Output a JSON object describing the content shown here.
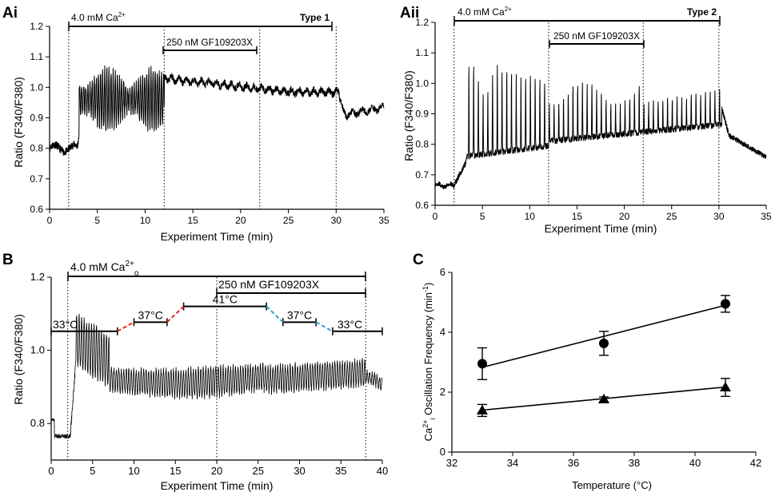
{
  "chart_data": [
    {
      "panel_label": "Ai",
      "type": "line",
      "title": "",
      "xlabel": "Experiment  Time (min)",
      "ylabel": "Ratio (F340/F380)",
      "xlim": [
        0,
        35
      ],
      "ylim": [
        0.6,
        1.2
      ],
      "xticks": [
        0,
        5,
        10,
        15,
        20,
        25,
        30,
        35
      ],
      "xtick_labels": [
        "0",
        "5",
        "10",
        "15",
        "20",
        "25",
        "30",
        "35"
      ],
      "yticks": [
        0.6,
        0.7,
        0.8,
        0.9,
        1.0,
        1.1,
        1.2
      ],
      "ytick_labels": [
        "0.6",
        "0.7",
        "0.8",
        "0.9",
        "1.0",
        "1.1",
        "1.2"
      ],
      "annotations": {
        "bar1": {
          "label_main": "4.0 mM Ca",
          "label_sup": "2+",
          "x": [
            2,
            30
          ]
        },
        "bar2": {
          "label": "250 nM GF109203X",
          "x": [
            12,
            22
          ]
        },
        "type_label": "Type 1",
        "vlines": [
          2,
          12,
          22,
          30
        ]
      },
      "trace": {
        "pre": 0.8,
        "osc_start": 2.9,
        "osc_base": 0.875,
        "osc_peak": 1.06,
        "drug_level": 1.03,
        "drug_end_level": 0.985,
        "post": 0.91,
        "osc_period": 0.22
      }
    },
    {
      "panel_label": "Aii",
      "type": "line",
      "title": "",
      "xlabel": "Experiment  Time (min)",
      "ylabel": "Ratio (F340/F380)",
      "xlim": [
        0,
        35
      ],
      "ylim": [
        0.6,
        1.2
      ],
      "xticks": [
        0,
        5,
        10,
        15,
        20,
        25,
        30,
        35
      ],
      "xtick_labels": [
        "0",
        "5",
        "10",
        "15",
        "20",
        "25",
        "30",
        "35"
      ],
      "yticks": [
        0.6,
        0.7,
        0.8,
        0.9,
        1.0,
        1.1,
        1.2
      ],
      "ytick_labels": [
        "0.6",
        "0.7",
        "0.8",
        "0.9",
        "1.0",
        "1.1",
        "1.2"
      ],
      "annotations": {
        "bar1": {
          "label_main": "4.0 mM Ca",
          "label_sup": "2+",
          "x": [
            2,
            30
          ]
        },
        "bar2": {
          "label": "250 nM GF109203X",
          "x": [
            12,
            22
          ]
        },
        "type_label": "Type 2",
        "vlines": [
          2,
          12,
          22,
          30
        ]
      },
      "trace": {
        "pre": 0.665,
        "base": 0.77,
        "spike_peak": 1.07,
        "spike_period": 0.5,
        "post": 0.76
      }
    },
    {
      "panel_label": "B",
      "type": "line",
      "title": "",
      "xlabel": "Experiment Time (min)",
      "ylabel": "Ratio (F340/F380)",
      "xlim": [
        0,
        40
      ],
      "ylim": [
        0.7,
        1.2
      ],
      "xticks": [
        0,
        5,
        10,
        15,
        20,
        25,
        30,
        35,
        40
      ],
      "xtick_labels": [
        "0",
        "5",
        "10",
        "15",
        "20",
        "25",
        "30",
        "35",
        "40"
      ],
      "yticks": [
        0.8,
        1.0,
        1.2
      ],
      "ytick_labels": [
        "0.8",
        "1.0",
        "1.2"
      ],
      "annotations": {
        "bar1": {
          "label_main": "4.0 mM Ca",
          "label_sup": "2+",
          "label_sub": "o",
          "x": [
            2,
            38
          ]
        },
        "bar2": {
          "label": "250 nM GF109203X",
          "x": [
            20,
            38
          ]
        },
        "temperature_segments": [
          {
            "label": "33°C",
            "x": [
              0,
              8
            ],
            "y": 1.052
          },
          {
            "label": "37°C",
            "x": [
              10,
              14
            ],
            "y": 1.077
          },
          {
            "label": "41°C",
            "x": [
              16,
              26
            ],
            "y": 1.12
          },
          {
            "label": "37°C",
            "x": [
              28,
              32
            ],
            "y": 1.077
          },
          {
            "label": "33°C",
            "x": [
              34,
              40
            ],
            "y": 1.052
          }
        ],
        "ramps": [
          {
            "x": [
              8,
              16
            ],
            "color": "#e8231e",
            "direction": "heating"
          },
          {
            "x": [
              26,
              34
            ],
            "color": "#2aa6c9",
            "direction": "cooling"
          }
        ],
        "vlines": [
          2,
          20,
          38
        ]
      },
      "trace": {
        "pre": 0.81,
        "dip": 0.765,
        "burst_peak": 1.08,
        "osc_center": 0.92,
        "osc_period": 0.3
      }
    },
    {
      "panel_label": "C",
      "type": "scatter",
      "title": "",
      "xlabel": "Temperature (°C)",
      "ylabel_main": "Ca",
      "ylabel_sup": "2+",
      "ylabel_sub": "i",
      "ylabel_rest": " Oscillation  Frequency (min",
      "ylabel_sup2": "-1",
      "ylabel_close": ")",
      "xlim": [
        32,
        42
      ],
      "ylim": [
        0,
        6
      ],
      "xticks": [
        32,
        34,
        36,
        38,
        40,
        42
      ],
      "xtick_labels": [
        "32",
        "34",
        "36",
        "38",
        "40",
        "42"
      ],
      "yticks": [
        0,
        2,
        4,
        6
      ],
      "ytick_labels": [
        "0",
        "2",
        "4",
        "6"
      ],
      "series": [
        {
          "name": "circles",
          "marker": "circle",
          "x": [
            33,
            37,
            41
          ],
          "y": [
            2.95,
            3.63,
            4.95
          ],
          "err": [
            0.53,
            0.4,
            0.28
          ],
          "fit": {
            "x": [
              33,
              41
            ],
            "y": [
              2.83,
              4.9
            ]
          }
        },
        {
          "name": "triangles",
          "marker": "triangle",
          "x": [
            33,
            37,
            41
          ],
          "y": [
            1.39,
            1.76,
            2.16
          ],
          "err": [
            0.2,
            0.08,
            0.3
          ],
          "fit": {
            "x": [
              33,
              41
            ],
            "y": [
              1.4,
              2.17
            ]
          }
        }
      ]
    }
  ]
}
